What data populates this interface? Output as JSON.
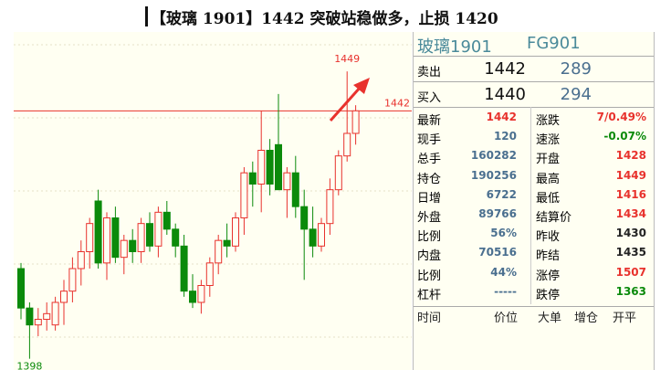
{
  "title": "【玻璃 1901】1442 突破站稳做多，止损 1420",
  "chart": {
    "type": "candlestick",
    "ylim": [
      1396,
      1456
    ],
    "up_color": "#e8322d",
    "down_color": "#0b8a0b",
    "high_label": 1449,
    "line_value": 1442,
    "low_label": 1398,
    "candles": [
      {
        "open": 1414,
        "high": 1415,
        "low": 1405,
        "close": 1407
      },
      {
        "open": 1407,
        "high": 1408,
        "low": 1398,
        "close": 1404
      },
      {
        "open": 1404,
        "high": 1407,
        "low": 1402,
        "close": 1405
      },
      {
        "open": 1405,
        "high": 1408,
        "low": 1403,
        "close": 1406
      },
      {
        "open": 1404,
        "high": 1409,
        "low": 1403,
        "close": 1408
      },
      {
        "open": 1408,
        "high": 1412,
        "low": 1404,
        "close": 1410
      },
      {
        "open": 1410,
        "high": 1416,
        "low": 1408,
        "close": 1414
      },
      {
        "open": 1414,
        "high": 1419,
        "low": 1411,
        "close": 1417
      },
      {
        "open": 1417,
        "high": 1423,
        "low": 1414,
        "close": 1422
      },
      {
        "open": 1426,
        "high": 1428,
        "low": 1414,
        "close": 1415
      },
      {
        "open": 1415,
        "high": 1424,
        "low": 1412,
        "close": 1423
      },
      {
        "open": 1423,
        "high": 1425,
        "low": 1415,
        "close": 1416
      },
      {
        "open": 1416,
        "high": 1420,
        "low": 1413,
        "close": 1419
      },
      {
        "open": 1419,
        "high": 1421,
        "low": 1415,
        "close": 1417
      },
      {
        "open": 1417,
        "high": 1423,
        "low": 1415,
        "close": 1422
      },
      {
        "open": 1422,
        "high": 1424,
        "low": 1417,
        "close": 1418
      },
      {
        "open": 1418,
        "high": 1425,
        "low": 1416,
        "close": 1424
      },
      {
        "open": 1424,
        "high": 1426,
        "low": 1420,
        "close": 1421
      },
      {
        "open": 1421,
        "high": 1422,
        "low": 1416,
        "close": 1418
      },
      {
        "open": 1418,
        "high": 1420,
        "low": 1409,
        "close": 1410
      },
      {
        "open": 1410,
        "high": 1413,
        "low": 1407,
        "close": 1408
      },
      {
        "open": 1408,
        "high": 1412,
        "low": 1406,
        "close": 1411
      },
      {
        "open": 1411,
        "high": 1416,
        "low": 1409,
        "close": 1415
      },
      {
        "open": 1415,
        "high": 1420,
        "low": 1413,
        "close": 1419
      },
      {
        "open": 1419,
        "high": 1422,
        "low": 1416,
        "close": 1418
      },
      {
        "open": 1418,
        "high": 1424,
        "low": 1417,
        "close": 1423
      },
      {
        "open": 1423,
        "high": 1432,
        "low": 1420,
        "close": 1431
      },
      {
        "open": 1431,
        "high": 1433,
        "low": 1425,
        "close": 1429
      },
      {
        "open": 1429,
        "high": 1442,
        "low": 1424,
        "close": 1435
      },
      {
        "open": 1435,
        "high": 1437,
        "low": 1427,
        "close": 1429
      },
      {
        "open": 1436,
        "high": 1445,
        "low": 1428,
        "close": 1428
      },
      {
        "open": 1428,
        "high": 1432,
        "low": 1423,
        "close": 1431
      },
      {
        "open": 1431,
        "high": 1434,
        "low": 1423,
        "close": 1425
      },
      {
        "open": 1425,
        "high": 1428,
        "low": 1412,
        "close": 1421
      },
      {
        "open": 1421,
        "high": 1425,
        "low": 1416,
        "close": 1418
      },
      {
        "open": 1418,
        "high": 1423,
        "low": 1417,
        "close": 1422
      },
      {
        "open": 1422,
        "high": 1430,
        "low": 1420,
        "close": 1428
      },
      {
        "open": 1428,
        "high": 1435,
        "low": 1427,
        "close": 1434
      },
      {
        "open": 1434,
        "high": 1449,
        "low": 1433,
        "close": 1438
      },
      {
        "open": 1438,
        "high": 1443,
        "low": 1436,
        "close": 1442
      }
    ]
  },
  "quote": {
    "name": "玻璃1901",
    "code": "FG901",
    "ask": {
      "label": "卖出",
      "price": "1442",
      "volume": "289"
    },
    "bid": {
      "label": "买入",
      "price": "1440",
      "volume": "294"
    },
    "rows": [
      [
        {
          "text": "最新"
        },
        {
          "text": "1442",
          "color": "#e8322d"
        },
        {
          "text": "涨跌"
        },
        {
          "text": "7/0.49%",
          "color": "#e8322d"
        }
      ],
      [
        {
          "text": "现手"
        },
        {
          "text": "120",
          "color": "#4a6f8f"
        },
        {
          "text": "速涨"
        },
        {
          "text": "-0.07%",
          "color": "#0b8a0b"
        }
      ],
      [
        {
          "text": "总手"
        },
        {
          "text": "160282",
          "color": "#4a6f8f"
        },
        {
          "text": "开盘"
        },
        {
          "text": "1428",
          "color": "#e8322d"
        }
      ],
      [
        {
          "text": "持仓"
        },
        {
          "text": "190256",
          "color": "#4a6f8f"
        },
        {
          "text": "最高"
        },
        {
          "text": "1449",
          "color": "#e8322d"
        }
      ],
      [
        {
          "text": "日增"
        },
        {
          "text": "6722",
          "color": "#4a6f8f"
        },
        {
          "text": "最低"
        },
        {
          "text": "1416",
          "color": "#e8322d"
        }
      ],
      [
        {
          "text": "外盘"
        },
        {
          "text": "89766",
          "color": "#4a6f8f"
        },
        {
          "text": "结算价"
        },
        {
          "text": "1434",
          "color": "#e8322d"
        }
      ],
      [
        {
          "text": "比例"
        },
        {
          "text": "56%",
          "color": "#4a6f8f"
        },
        {
          "text": "昨收"
        },
        {
          "text": "1430",
          "color": "#222"
        }
      ],
      [
        {
          "text": "内盘"
        },
        {
          "text": "70516",
          "color": "#4a6f8f"
        },
        {
          "text": "昨结"
        },
        {
          "text": "1435",
          "color": "#222"
        }
      ],
      [
        {
          "text": "比例"
        },
        {
          "text": "44%",
          "color": "#4a6f8f"
        },
        {
          "text": "涨停"
        },
        {
          "text": "1507",
          "color": "#e8322d"
        }
      ],
      [
        {
          "text": "杠杆"
        },
        {
          "text": "-----",
          "color": "#4a6f8f"
        },
        {
          "text": "跌停"
        },
        {
          "text": "1363",
          "color": "#0b8a0b"
        }
      ]
    ],
    "footer": [
      "时间",
      "价位",
      "大单",
      "增仓",
      "开平"
    ]
  }
}
